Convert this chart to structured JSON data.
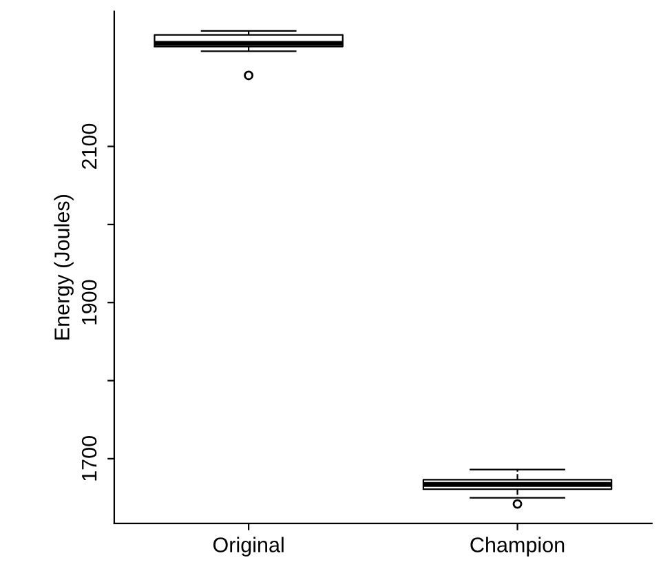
{
  "chart_data": {
    "type": "box",
    "ylabel": "Energy (Joules)",
    "categories": [
      "Original",
      "Champion"
    ],
    "boxes": [
      {
        "low": 2222,
        "q1": 2228,
        "median": 2232,
        "q3": 2243,
        "high": 2248,
        "outliers": [
          2191
        ]
      },
      {
        "low": 1650,
        "q1": 1661,
        "median": 1667,
        "q3": 1673,
        "high": 1686,
        "outliers": [
          1642
        ]
      }
    ],
    "ylim": [
      1617,
      2273
    ],
    "yticks": [
      {
        "value": 1700,
        "label": "1700"
      },
      {
        "value": 1800,
        "label": null
      },
      {
        "value": 1900,
        "label": "1900"
      },
      {
        "value": 2000,
        "label": null
      },
      {
        "value": 2100,
        "label": "2100"
      }
    ],
    "grid": false
  }
}
